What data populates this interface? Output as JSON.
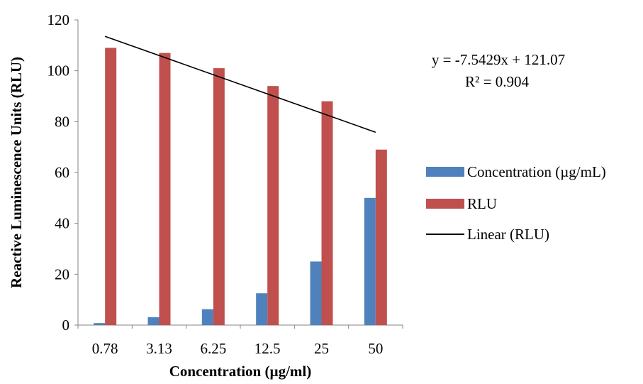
{
  "chart_data": {
    "type": "bar",
    "title": "",
    "xlabel": "Concentration (µg/ml)",
    "ylabel": "Reactive Luminescence Units (RLU)",
    "ylim": [
      0,
      120
    ],
    "yticks": [
      "0",
      "20",
      "40",
      "60",
      "80",
      "100",
      "120"
    ],
    "categories": [
      "0.78",
      "3.13",
      "6.25",
      "12.5",
      "25",
      "50"
    ],
    "series": [
      {
        "name": "Concentration (µg/mL)",
        "values": [
          0.78,
          3.13,
          6.25,
          12.5,
          25,
          50
        ],
        "color": "#4f81bd"
      },
      {
        "name": "RLU",
        "values": [
          109,
          107,
          101,
          94,
          88,
          69
        ],
        "color": "#c0504d"
      }
    ],
    "trendline": {
      "name": "Linear (RLU)",
      "slope": -7.5429,
      "intercept": 121.07,
      "color": "#000000"
    },
    "annotations": {
      "equation": "y = -7.5429x + 121.07",
      "r_squared": "R² = 0.904"
    },
    "legend": "right",
    "grid": false
  }
}
